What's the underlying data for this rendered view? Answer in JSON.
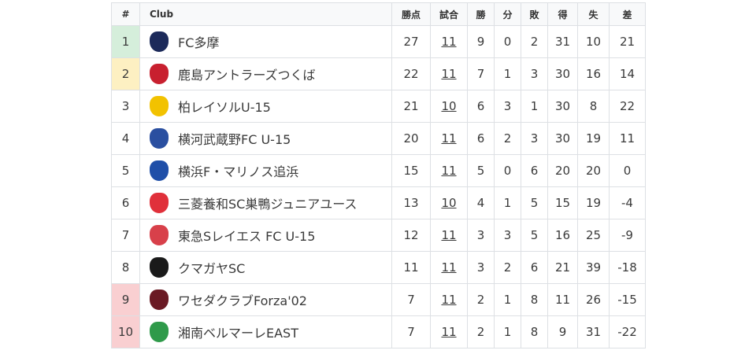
{
  "headers": [
    "#",
    "Club",
    "勝点",
    "試合",
    "勝",
    "分",
    "敗",
    "得",
    "失",
    "差"
  ],
  "colors": {
    "promotion": "#d5eedb",
    "playoff": "#fdf0c2",
    "relegation": "#f9cfd1"
  },
  "rows": [
    {
      "rank": "1",
      "club": "FC多摩",
      "pts": "27",
      "gp": "11",
      "w": "9",
      "d": "0",
      "l": "2",
      "gf": "31",
      "ga": "10",
      "gd": "21",
      "zone": "promotion",
      "logo": "#1c2a5a"
    },
    {
      "rank": "2",
      "club": "鹿島アントラーズつくば",
      "pts": "22",
      "gp": "11",
      "w": "7",
      "d": "1",
      "l": "3",
      "gf": "30",
      "ga": "16",
      "gd": "14",
      "zone": "playoff",
      "logo": "#c8202f"
    },
    {
      "rank": "3",
      "club": "柏レイソルU-15",
      "pts": "21",
      "gp": "10",
      "w": "6",
      "d": "3",
      "l": "1",
      "gf": "30",
      "ga": "8",
      "gd": "22",
      "zone": "",
      "logo": "#f2c200"
    },
    {
      "rank": "4",
      "club": "横河武蔵野FC U-15",
      "pts": "20",
      "gp": "11",
      "w": "6",
      "d": "2",
      "l": "3",
      "gf": "30",
      "ga": "19",
      "gd": "11",
      "zone": "",
      "logo": "#2a4fa0"
    },
    {
      "rank": "5",
      "club": "横浜F・マリノス追浜",
      "pts": "15",
      "gp": "11",
      "w": "5",
      "d": "0",
      "l": "6",
      "gf": "20",
      "ga": "20",
      "gd": "0",
      "zone": "",
      "logo": "#1f4fa8"
    },
    {
      "rank": "6",
      "club": "三菱養和SC巣鴨ジュニアユース",
      "pts": "13",
      "gp": "10",
      "w": "4",
      "d": "1",
      "l": "5",
      "gf": "15",
      "ga": "19",
      "gd": "-4",
      "zone": "",
      "logo": "#e0303a"
    },
    {
      "rank": "7",
      "club": "東急Sレイエス FC U-15",
      "pts": "12",
      "gp": "11",
      "w": "3",
      "d": "3",
      "l": "5",
      "gf": "16",
      "ga": "25",
      "gd": "-9",
      "zone": "",
      "logo": "#d8404a"
    },
    {
      "rank": "8",
      "club": "クマガヤSC",
      "pts": "11",
      "gp": "11",
      "w": "3",
      "d": "2",
      "l": "6",
      "gf": "21",
      "ga": "39",
      "gd": "-18",
      "zone": "",
      "logo": "#1a1a1a"
    },
    {
      "rank": "9",
      "club": "ワセダクラブForza'02",
      "pts": "7",
      "gp": "11",
      "w": "2",
      "d": "1",
      "l": "8",
      "gf": "11",
      "ga": "26",
      "gd": "-15",
      "zone": "relegation",
      "logo": "#6a1a24"
    },
    {
      "rank": "10",
      "club": "湘南ベルマーレEAST",
      "pts": "7",
      "gp": "11",
      "w": "2",
      "d": "1",
      "l": "8",
      "gf": "9",
      "ga": "31",
      "gd": "-22",
      "zone": "relegation",
      "logo": "#2f9a4a"
    }
  ]
}
